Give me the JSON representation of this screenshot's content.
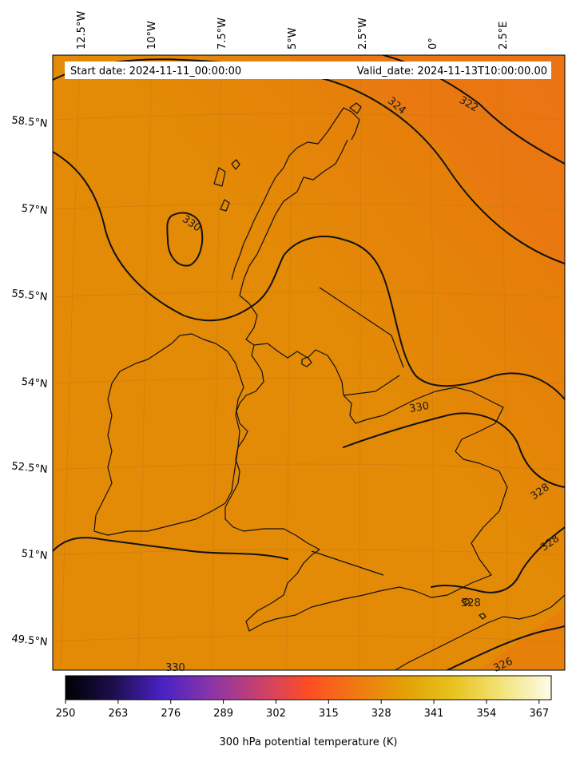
{
  "map": {
    "header": {
      "start_date": "Start date: 2024-11-11_00:00:00",
      "valid_date": "Valid_date: 2024-11-13T10:00:00.00"
    },
    "longitude_labels": [
      "12.5°W",
      "10°W",
      "7.5°W",
      "5°W",
      "2.5°W",
      "0°",
      "2.5°E"
    ],
    "latitude_labels": [
      "58.5°N",
      "57°N",
      "55.5°N",
      "54°N",
      "52.5°N",
      "51°N",
      "49.5°N"
    ],
    "contour_labels": [
      "324",
      "322",
      "330",
      "330",
      "328",
      "328",
      "328",
      "330",
      "326"
    ],
    "colors": {
      "field_main": "#e38a06",
      "field_north": "#e87a0c",
      "field_ne": "#ec6816",
      "contour": "#111111",
      "coast": "#111111"
    }
  },
  "colorbar": {
    "label": "300 hPa potential temperature (K)",
    "ticks": [
      "250",
      "263",
      "276",
      "289",
      "302",
      "315",
      "328",
      "341",
      "354",
      "367"
    ],
    "min": 250,
    "max": 370,
    "gradient": [
      "#000000",
      "#1d0f4e",
      "#4a22c4",
      "#8a35a8",
      "#c8406e",
      "#ff4d24",
      "#f07a12",
      "#e1a106",
      "#e8c320",
      "#f3e37c",
      "#fffbe8"
    ]
  }
}
